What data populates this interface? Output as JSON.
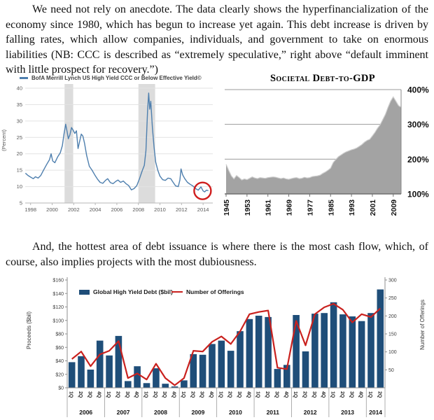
{
  "paragraphs": {
    "p1": "We need not rely on anecdote.  The data clearly shows the hyperfinancialization of the economy since 1980, which has begun to increase yet again.  This debt increase is driven by falling rates, which allow companies, individuals, and government to take on enormous liabilities (NB: CCC is described as “extremely speculative,” right above “default imminent with little prospect for recovery.”)",
    "p2": "And, the hottest area of debt issuance is where there is the most cash flow, which, of course, also implies projects with the most dubiousness."
  },
  "chart_data": [
    {
      "type": "line",
      "title": "BofA Merrill Lynch US High Yield CCC or Below Effective Yield©",
      "ylabel": "(Percent)",
      "ylim": [
        5,
        40
      ],
      "yticks": [
        5,
        10,
        15,
        20,
        25,
        30,
        35,
        40
      ],
      "xlim": [
        1997.5,
        2014.9
      ],
      "xticks": [
        1998,
        2000,
        2002,
        2004,
        2006,
        2008,
        2010,
        2012,
        2014
      ],
      "recession_bands": [
        [
          2001.15,
          2001.95
        ],
        [
          2008.0,
          2009.55
        ]
      ],
      "line_color": "#4e7fae",
      "annotation": {
        "shape": "circle",
        "x": 2013.95,
        "y": 8.7,
        "color": "#cf1d1d",
        "meaning": "recent-low-highlight"
      },
      "x": [
        1997.55,
        1997.75,
        1998.0,
        1998.25,
        1998.45,
        1998.7,
        1998.95,
        1999.2,
        1999.5,
        1999.75,
        1999.9,
        2000.05,
        2000.25,
        2000.5,
        2000.75,
        2000.95,
        2001.1,
        2001.25,
        2001.4,
        2001.5,
        2001.65,
        2001.8,
        2001.95,
        2002.1,
        2002.25,
        2002.4,
        2002.55,
        2002.7,
        2002.85,
        2003.0,
        2003.2,
        2003.45,
        2003.7,
        2003.95,
        2004.2,
        2004.45,
        2004.7,
        2004.95,
        2005.15,
        2005.4,
        2005.65,
        2005.9,
        2006.1,
        2006.35,
        2006.6,
        2006.85,
        2007.1,
        2007.35,
        2007.6,
        2007.85,
        2008.1,
        2008.35,
        2008.55,
        2008.7,
        2008.85,
        2008.95,
        2009.05,
        2009.15,
        2009.3,
        2009.45,
        2009.6,
        2009.8,
        2010.0,
        2010.25,
        2010.5,
        2010.75,
        2011.0,
        2011.2,
        2011.45,
        2011.7,
        2011.85,
        2011.95,
        2012.1,
        2012.3,
        2012.55,
        2012.8,
        2013.05,
        2013.3,
        2013.55,
        2013.8,
        2014.0,
        2014.15,
        2014.3,
        2014.45
      ],
      "y": [
        14.0,
        13.4,
        12.9,
        12.4,
        13.0,
        12.6,
        13.4,
        15.0,
        16.8,
        18.2,
        20.0,
        17.8,
        17.3,
        19.0,
        20.3,
        22.5,
        26.0,
        29.0,
        26.5,
        24.6,
        25.8,
        28.0,
        27.2,
        26.2,
        27.0,
        21.6,
        23.8,
        26.0,
        25.4,
        23.3,
        19.5,
        16.2,
        15.0,
        13.6,
        12.3,
        11.3,
        11.0,
        11.9,
        12.4,
        11.2,
        10.9,
        11.6,
        12.0,
        11.3,
        11.7,
        10.9,
        10.3,
        9.0,
        9.4,
        10.3,
        12.4,
        14.8,
        16.5,
        21.0,
        33.0,
        38.5,
        33.6,
        36.0,
        28.0,
        22.0,
        17.5,
        15.0,
        13.2,
        12.1,
        11.9,
        12.6,
        12.4,
        11.4,
        10.2,
        10.0,
        12.0,
        15.4,
        13.6,
        12.4,
        11.3,
        10.7,
        10.2,
        9.4,
        8.9,
        9.9,
        8.7,
        8.4,
        8.9,
        8.8
      ]
    },
    {
      "type": "area",
      "title": "Societal Debt-to-GDP",
      "ylim": [
        100,
        400
      ],
      "yticks": [
        "100%",
        "200%",
        "300%",
        "400%"
      ],
      "xticks": [
        1945,
        1953,
        1961,
        1969,
        1977,
        1985,
        1993,
        2001,
        2009
      ],
      "fill_color": "#a3a3a3",
      "x": [
        1945,
        1946,
        1947,
        1948,
        1949,
        1950,
        1951,
        1952,
        1953,
        1954,
        1955,
        1956,
        1957,
        1958,
        1959,
        1960,
        1961,
        1962,
        1963,
        1964,
        1965,
        1966,
        1967,
        1968,
        1969,
        1970,
        1971,
        1972,
        1973,
        1974,
        1975,
        1976,
        1977,
        1978,
        1979,
        1980,
        1981,
        1982,
        1983,
        1984,
        1985,
        1986,
        1987,
        1988,
        1989,
        1990,
        1991,
        1992,
        1993,
        1994,
        1995,
        1996,
        1997,
        1998,
        1999,
        2000,
        2001,
        2002,
        2003,
        2004,
        2005,
        2006,
        2007,
        2008,
        2009,
        2010,
        2011,
        2012
      ],
      "y": [
        185,
        168,
        152,
        143,
        153,
        147,
        140,
        143,
        141,
        145,
        149,
        146,
        144,
        147,
        146,
        145,
        147,
        148,
        149,
        148,
        146,
        144,
        146,
        143,
        142,
        144,
        146,
        147,
        144,
        145,
        148,
        146,
        147,
        150,
        151,
        152,
        154,
        159,
        163,
        168,
        174,
        190,
        199,
        207,
        212,
        217,
        221,
        224,
        227,
        229,
        232,
        237,
        242,
        249,
        254,
        257,
        267,
        277,
        289,
        299,
        314,
        329,
        349,
        367,
        379,
        367,
        354,
        349
      ]
    },
    {
      "type": "combo-bar-line",
      "legend": [
        "Global High Yield Debt ($bil)",
        "Number of Offerings"
      ],
      "ylabel_left": "Proceeds ($bil)",
      "ylabel_right": "Number of Offerings",
      "ylim_left": [
        0,
        160
      ],
      "yticks_left": [
        "$0",
        "$20",
        "$40",
        "$60",
        "$80",
        "$100",
        "$120",
        "$140",
        "$160"
      ],
      "ylim_right": [
        0,
        300
      ],
      "yticks_right": [
        50,
        100,
        150,
        200,
        250,
        300
      ],
      "bar_color": "#1f4e79",
      "line_color": "#c9211e",
      "year_groups": [
        {
          "label": "2006",
          "quarters": 4
        },
        {
          "label": "2007",
          "quarters": 4
        },
        {
          "label": "2008",
          "quarters": 4
        },
        {
          "label": "2009",
          "quarters": 4
        },
        {
          "label": "2010",
          "quarters": 4
        },
        {
          "label": "2011",
          "quarters": 4
        },
        {
          "label": "2012",
          "quarters": 4
        },
        {
          "label": "2013",
          "quarters": 4
        },
        {
          "label": "2014",
          "quarters": 2
        }
      ],
      "bars": [
        38,
        47,
        27,
        70,
        48,
        77,
        10,
        32,
        7,
        29,
        6,
        2,
        11,
        50,
        49,
        65,
        70,
        55,
        84,
        102,
        107,
        105,
        28,
        34,
        108,
        54,
        110,
        111,
        127,
        109,
        106,
        99,
        111,
        146
      ],
      "line": [
        80,
        101,
        60,
        93,
        103,
        130,
        27,
        40,
        23,
        67,
        27,
        7,
        27,
        103,
        101,
        128,
        143,
        122,
        157,
        205,
        211,
        215,
        56,
        52,
        186,
        118,
        205,
        224,
        234,
        217,
        182,
        205,
        197,
        221
      ]
    }
  ]
}
